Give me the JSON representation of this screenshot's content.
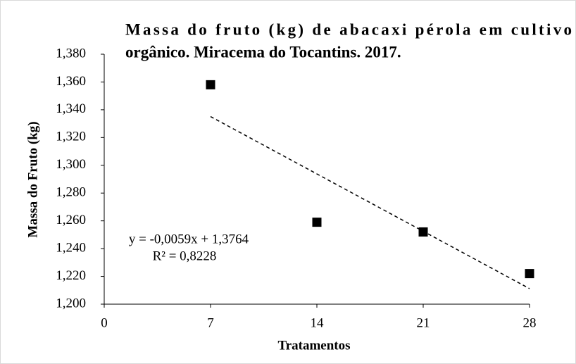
{
  "chart_data": {
    "type": "scatter",
    "title": [
      "Massa do fruto (kg) de abacaxi pérola em cultivo",
      "orgânico. Miracema do Tocantins. 2017."
    ],
    "x_label": "Tratamentos",
    "y_label": "Massa do Fruto (kg)",
    "x": [
      7,
      14,
      21,
      28
    ],
    "values": [
      1.358,
      1.259,
      1.252,
      1.222
    ],
    "color": "#000000",
    "xlim": [
      0,
      28
    ],
    "xticks": [
      0,
      7,
      14,
      21,
      28
    ],
    "ylim": [
      1.2,
      1.38
    ],
    "yticks": [
      {
        "value": 1.2,
        "label": "1,200"
      },
      {
        "value": 1.22,
        "label": "1,220"
      },
      {
        "value": 1.24,
        "label": "1,240"
      },
      {
        "value": 1.26,
        "label": "1,260"
      },
      {
        "value": 1.28,
        "label": "1,280"
      },
      {
        "value": 1.3,
        "label": "1,300"
      },
      {
        "value": 1.32,
        "label": "1,320"
      },
      {
        "value": 1.34,
        "label": "1,340"
      },
      {
        "value": 1.36,
        "label": "1,360"
      },
      {
        "value": 1.38,
        "label": "1,380"
      }
    ],
    "trendline": {
      "slope": -0.0059,
      "intercept": 1.3764,
      "equation": "y = -0,0059x + 1,3764",
      "r2": "R² = 0,8228"
    }
  }
}
